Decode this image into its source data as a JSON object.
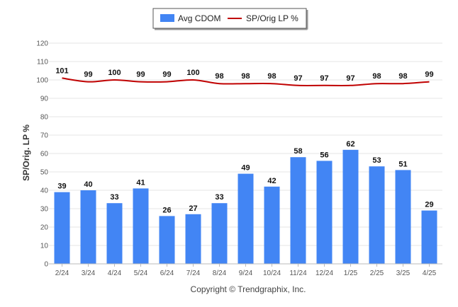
{
  "chart_data": {
    "type": "bar",
    "ylabel": "SP/Orig. LP %",
    "ylim": [
      0,
      120
    ],
    "yticks": [
      0,
      10,
      20,
      30,
      40,
      50,
      60,
      70,
      80,
      90,
      100,
      110,
      120
    ],
    "grid": true,
    "legend_position": "top-center",
    "categories": [
      "2/24",
      "3/24",
      "4/24",
      "5/24",
      "6/24",
      "7/24",
      "8/24",
      "9/24",
      "10/24",
      "11/24",
      "12/24",
      "1/25",
      "2/25",
      "3/25",
      "4/25"
    ],
    "series": [
      {
        "name": "Avg CDOM",
        "type": "bar",
        "color": "#4285f4",
        "values": [
          39,
          40,
          33,
          41,
          26,
          27,
          33,
          49,
          42,
          58,
          56,
          62,
          53,
          51,
          29
        ]
      },
      {
        "name": "SP/Orig LP %",
        "type": "line",
        "color": "#c00000",
        "values": [
          101,
          99,
          100,
          99,
          99,
          100,
          98,
          98,
          98,
          97,
          97,
          97,
          98,
          98,
          99
        ]
      }
    ],
    "credit": "Copyright © Trendgraphix, Inc."
  }
}
